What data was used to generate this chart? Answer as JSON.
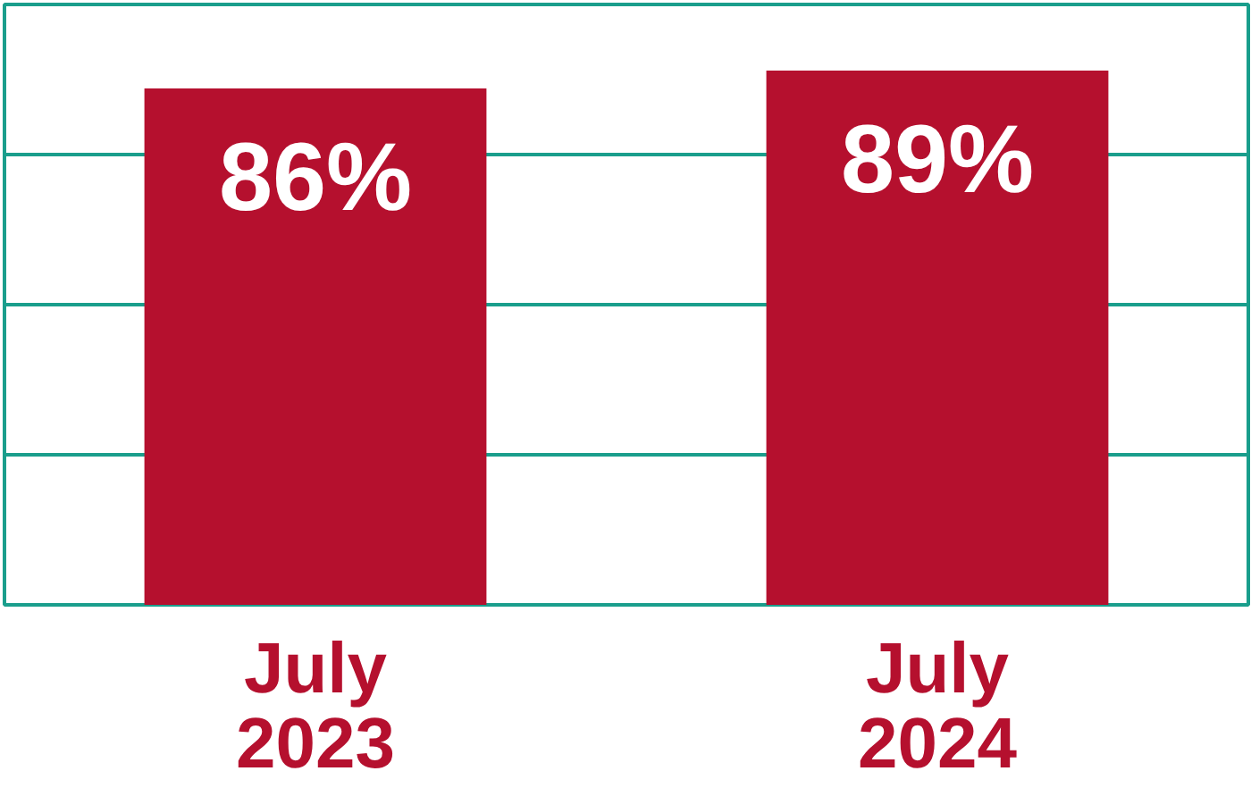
{
  "chart_data": {
    "type": "bar",
    "categories": [
      "July\n2023",
      "July\n2024"
    ],
    "values": [
      86,
      89
    ],
    "color": "#b5102e",
    "value_labels": [
      "86%",
      "89%"
    ],
    "ylim": [
      0,
      100
    ],
    "yticks": [
      {
        "value": 0,
        "label": null
      },
      {
        "value": 25,
        "label": null
      },
      {
        "value": 50,
        "label": null
      },
      {
        "value": 75,
        "label": null
      },
      {
        "value": 100,
        "label": null
      }
    ],
    "grid": "y",
    "tick_labels": "x"
  }
}
